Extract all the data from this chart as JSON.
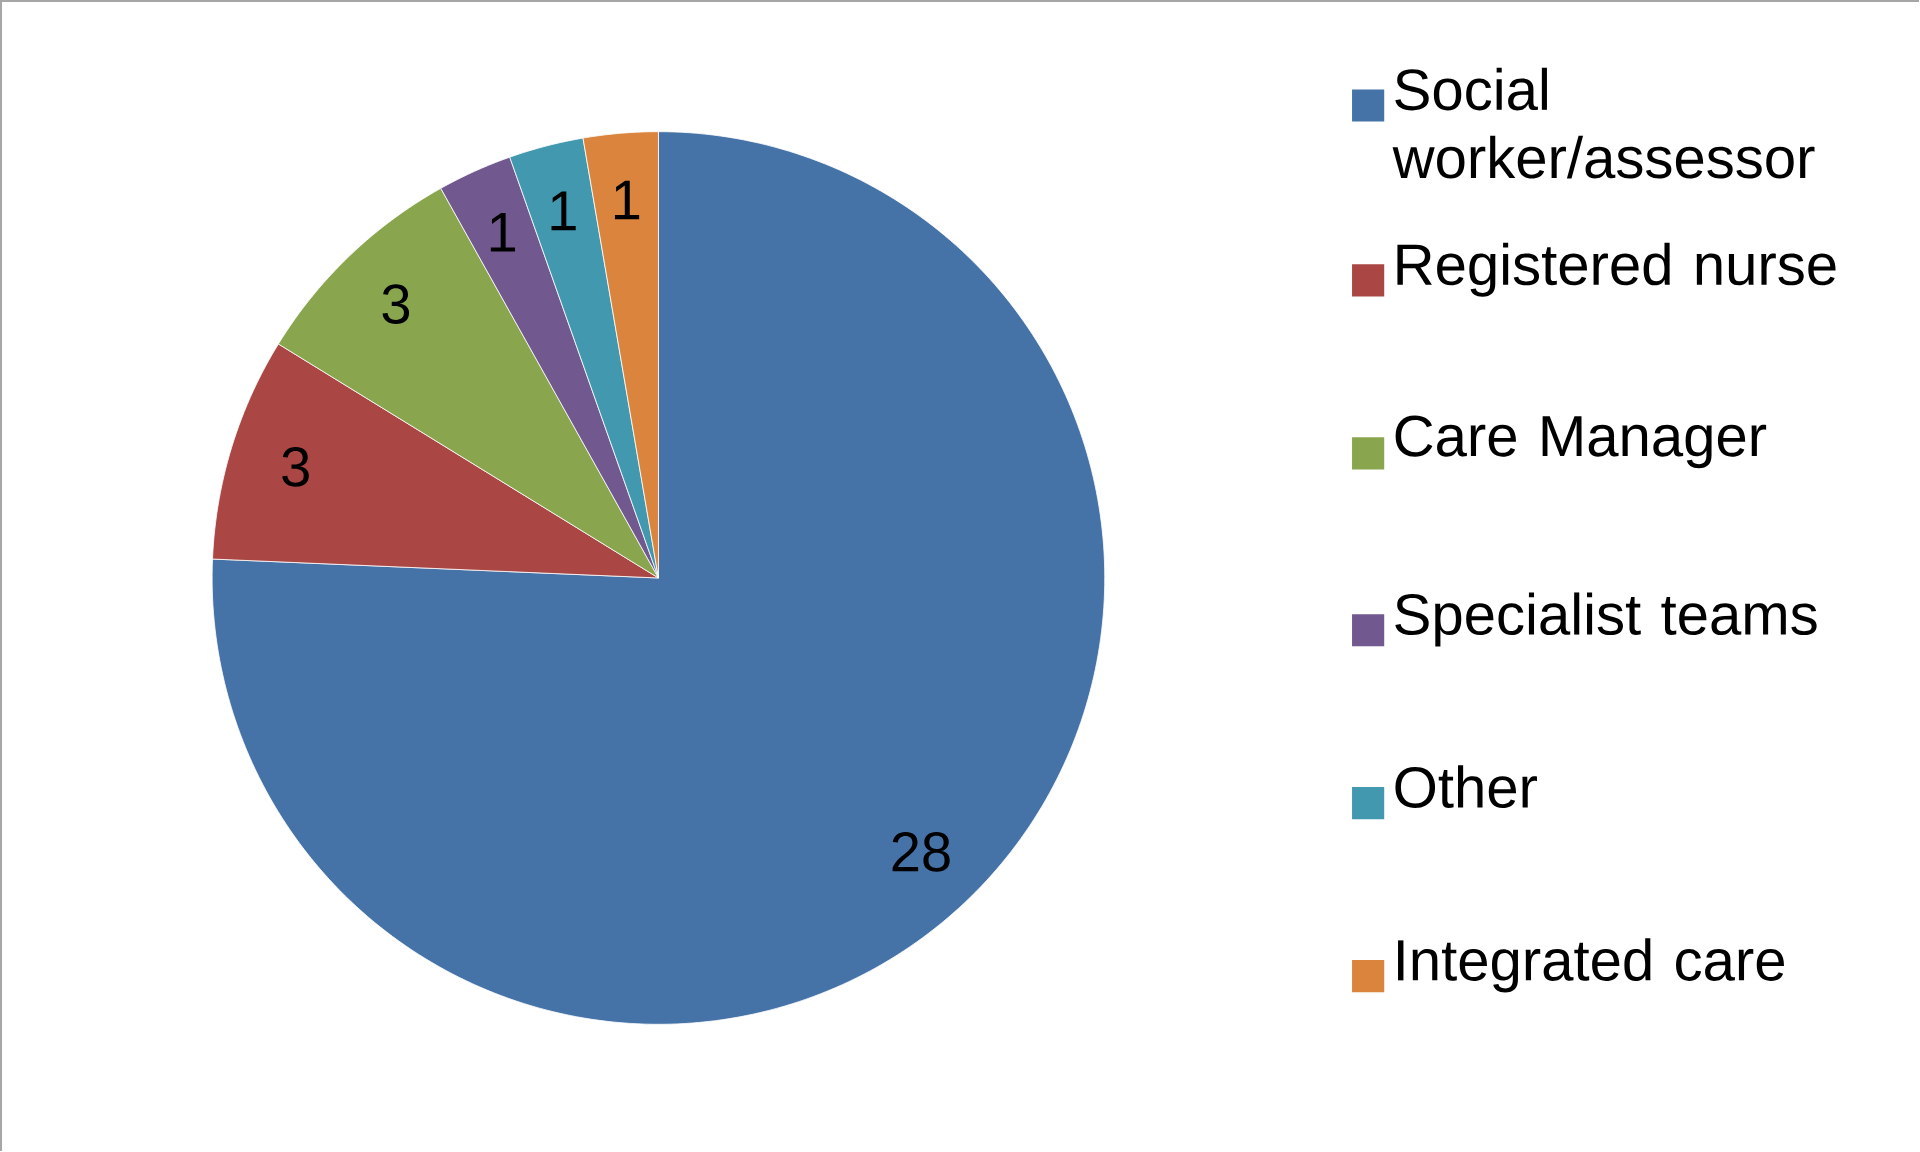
{
  "chart_data": {
    "type": "pie",
    "categories": [
      "Social worker/assessor",
      "Registered nurse",
      "Care Manager",
      "Specialist teams",
      "Other",
      "Integrated care"
    ],
    "values": [
      28,
      3,
      3,
      1,
      1,
      1
    ],
    "colors": [
      "#4572a7",
      "#aa4643",
      "#89a54e",
      "#71588f",
      "#4198af",
      "#db843d"
    ],
    "data_labels": true,
    "legend": "right"
  }
}
